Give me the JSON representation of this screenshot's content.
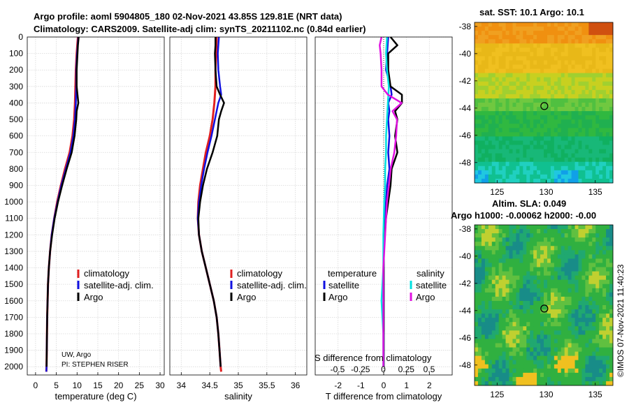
{
  "titles": {
    "line1": "Argo profile: aoml 5904805_180 02-Nov-2021 43.85S 129.81E (NRT data)",
    "line2": "Climatology: CARS2009. Satellite-adj clim: synTS_20211102.nc (0.84d earlier)"
  },
  "legend": {
    "climatology": "climatology",
    "satellite": "satellite-adj. clim.",
    "argo": "Argo",
    "temperature_hdr": "temperature",
    "salinity_hdr": "salinity",
    "satellite_short": "satellite",
    "argo_short": "Argo"
  },
  "credits": {
    "line1": "UW, Argo",
    "line2": "PI: STEPHEN RISER"
  },
  "diff_labels": {
    "s_title": "S difference from climatology"
  },
  "maps": {
    "sst_title": "sat. SST: 10.1 Argo: 10.1",
    "sla_title1": "Altim. SLA: 0.049",
    "sla_title2": "Argo h1000: -0.00062 h2000: -0.00",
    "lat_ticks": [
      "-38",
      "-40",
      "-42",
      "-44",
      "-46",
      "-48"
    ],
    "lon_ticks": [
      "125",
      "130",
      "135"
    ],
    "float_lon": 129.81,
    "float_lat": -43.85
  },
  "watermark": "©IMOS 07-Nov-2021 11:40:23",
  "colors": {
    "climatology": "#e02020",
    "satellite": "#1010e0",
    "argo": "#000000",
    "sal_sat": "#00e0e0",
    "sal_argo": "#e010e0"
  },
  "chart_data": [
    {
      "type": "line",
      "name": "temperature",
      "xlabel": "temperature (deg C)",
      "ylabel": "",
      "xlim": [
        -2,
        31
      ],
      "ylim": [
        2050,
        0
      ],
      "xticks": [
        0,
        5,
        10,
        15,
        20,
        25,
        30
      ],
      "yticks": [
        0,
        100,
        200,
        300,
        400,
        500,
        600,
        700,
        800,
        900,
        1000,
        1100,
        1200,
        1300,
        1400,
        1500,
        1600,
        1700,
        1800,
        1900,
        2000
      ],
      "series": [
        {
          "name": "climatology",
          "depth": [
            0,
            100,
            200,
            300,
            400,
            500,
            600,
            700,
            800,
            900,
            1000,
            1100,
            1200,
            1300,
            1400,
            1500,
            1600,
            1700,
            1800,
            1900,
            2000,
            2030
          ],
          "values": [
            10.2,
            9.9,
            9.7,
            9.6,
            9.5,
            9.3,
            8.9,
            8.2,
            7.1,
            6.1,
            5.2,
            4.5,
            3.9,
            3.5,
            3.2,
            3.0,
            2.9,
            2.8,
            2.75,
            2.7,
            2.65,
            2.6
          ]
        },
        {
          "name": "satellite-adj. clim.",
          "depth": [
            0,
            100,
            200,
            300,
            400,
            500,
            600,
            700,
            800,
            900,
            1000,
            1100,
            1200,
            1300,
            1400,
            1500,
            1600,
            1700,
            1800,
            1900,
            2000,
            2030
          ],
          "values": [
            10.3,
            10.0,
            9.8,
            9.8,
            9.7,
            9.5,
            9.1,
            8.4,
            7.3,
            6.2,
            5.3,
            4.5,
            3.9,
            3.5,
            3.2,
            3.0,
            2.9,
            2.8,
            2.75,
            2.7,
            2.65,
            2.6
          ]
        },
        {
          "name": "Argo",
          "depth": [
            0,
            50,
            100,
            200,
            300,
            350,
            400,
            450,
            500,
            600,
            700,
            800,
            900,
            1000,
            1100,
            1200,
            1300,
            1400,
            1500,
            1600,
            1700,
            1800,
            1900,
            2000
          ],
          "values": [
            10.4,
            10.2,
            10.1,
            9.9,
            9.9,
            10.1,
            10.3,
            9.9,
            9.8,
            9.4,
            8.7,
            7.5,
            6.4,
            5.4,
            4.6,
            4.0,
            3.5,
            3.2,
            3.0,
            2.9,
            2.8,
            2.75,
            2.7,
            2.65
          ]
        }
      ]
    },
    {
      "type": "line",
      "name": "salinity",
      "xlabel": "salinity",
      "ylabel": "",
      "xlim": [
        33.8,
        36.2
      ],
      "ylim": [
        2050,
        0
      ],
      "xticks": [
        34,
        34.5,
        35,
        35.5,
        36
      ],
      "xticklabels": [
        "34",
        "34.5",
        "35",
        "35.5",
        "36"
      ],
      "series": [
        {
          "name": "climatology",
          "depth": [
            0,
            100,
            200,
            300,
            400,
            500,
            600,
            700,
            800,
            900,
            1000,
            1100,
            1200,
            1300,
            1400,
            1500,
            1600,
            1700,
            1800,
            1900,
            2000,
            2030
          ],
          "values": [
            34.62,
            34.61,
            34.6,
            34.6,
            34.58,
            34.55,
            34.5,
            34.43,
            34.38,
            34.33,
            34.3,
            34.29,
            34.31,
            34.36,
            34.43,
            34.5,
            34.57,
            34.62,
            34.65,
            34.67,
            34.69,
            34.7
          ]
        },
        {
          "name": "satellite-adj. clim.",
          "depth": [
            0,
            100,
            200,
            300,
            350,
            400,
            500,
            600,
            700,
            800,
            900,
            1000,
            1100,
            1200,
            1300,
            1400,
            1500,
            1600,
            1700,
            1800,
            1900,
            2000
          ],
          "values": [
            34.66,
            34.64,
            34.65,
            34.68,
            34.7,
            34.65,
            34.59,
            34.53,
            34.46,
            34.4,
            34.35,
            34.31,
            34.29,
            34.31,
            34.36,
            34.43,
            34.5,
            34.57,
            34.62,
            34.65,
            34.67,
            34.69
          ]
        },
        {
          "name": "Argo",
          "depth": [
            0,
            50,
            100,
            200,
            300,
            350,
            400,
            450,
            500,
            600,
            700,
            800,
            900,
            1000,
            1100,
            1200,
            1300,
            1400,
            1500,
            1600,
            1700,
            1800,
            1900,
            2000
          ],
          "values": [
            34.6,
            34.6,
            34.59,
            34.6,
            34.62,
            34.68,
            34.75,
            34.7,
            34.66,
            34.63,
            34.55,
            34.45,
            34.38,
            34.33,
            34.3,
            34.31,
            34.36,
            34.43,
            34.5,
            34.57,
            34.62,
            34.65,
            34.67,
            34.69
          ]
        }
      ]
    },
    {
      "type": "line",
      "name": "difference",
      "xlabel": "T difference from climatology",
      "ylabel": "",
      "xlim": [
        -3,
        3
      ],
      "ylim": [
        2050,
        0
      ],
      "xticks": [
        -2,
        -1,
        0,
        1,
        2
      ],
      "xticklabels": [
        "-2",
        "-1",
        "0",
        "1",
        "2"
      ],
      "s_ticks": [
        -0.5,
        -0.25,
        0,
        0.25,
        0.5
      ],
      "s_ticklabels": [
        "-0.5",
        "-0.25",
        "0",
        "0.25",
        "0.5"
      ],
      "series": [
        {
          "name": "temperature satellite",
          "depth": [
            0,
            100,
            200,
            300,
            350,
            400,
            450,
            500,
            600,
            700,
            800,
            900,
            1000,
            1100,
            1200,
            1300,
            1400,
            1500,
            1600,
            1800,
            2000
          ],
          "values": [
            0.2,
            0.15,
            0.1,
            0.3,
            0.35,
            0.2,
            0.25,
            0.2,
            0.25,
            0.2,
            0.25,
            0.15,
            0.1,
            0.05,
            0.0,
            0.0,
            0.0,
            0.0,
            0.0,
            0.0,
            0.0
          ]
        },
        {
          "name": "temperature Argo",
          "depth": [
            0,
            50,
            100,
            200,
            300,
            350,
            400,
            450,
            500,
            600,
            700,
            800,
            900,
            1000,
            1100,
            1200,
            1300,
            1400,
            1500,
            1600,
            1800,
            2000
          ],
          "values": [
            0.3,
            0.6,
            0.2,
            0.2,
            0.3,
            0.8,
            0.8,
            0.5,
            0.6,
            0.5,
            0.6,
            0.35,
            0.3,
            0.2,
            0.1,
            0.05,
            0.0,
            0.0,
            0.0,
            0.0,
            0.0,
            0.0
          ]
        },
        {
          "name": "salinity satellite",
          "depth": [
            0,
            100,
            200,
            300,
            400,
            500,
            600,
            700,
            800,
            900,
            1000,
            1200,
            1400,
            1500,
            1600,
            1800,
            2000
          ],
          "values": [
            0.04,
            0.03,
            0.04,
            0.06,
            0.05,
            0.04,
            0.03,
            0.03,
            0.02,
            0.02,
            0.01,
            0.0,
            0.0,
            -0.01,
            -0.02,
            0.0,
            0.0
          ]
        },
        {
          "name": "salinity Argo",
          "depth": [
            0,
            50,
            100,
            200,
            300,
            350,
            400,
            450,
            500,
            600,
            700,
            800,
            900,
            1000,
            1200,
            1400,
            1600,
            1800,
            2000
          ],
          "values": [
            -0.02,
            -0.04,
            -0.03,
            -0.02,
            -0.02,
            0.05,
            0.2,
            0.1,
            0.15,
            0.14,
            0.12,
            0.08,
            0.06,
            0.04,
            0.02,
            0.0,
            0.0,
            0.0,
            0.0
          ]
        }
      ]
    }
  ]
}
